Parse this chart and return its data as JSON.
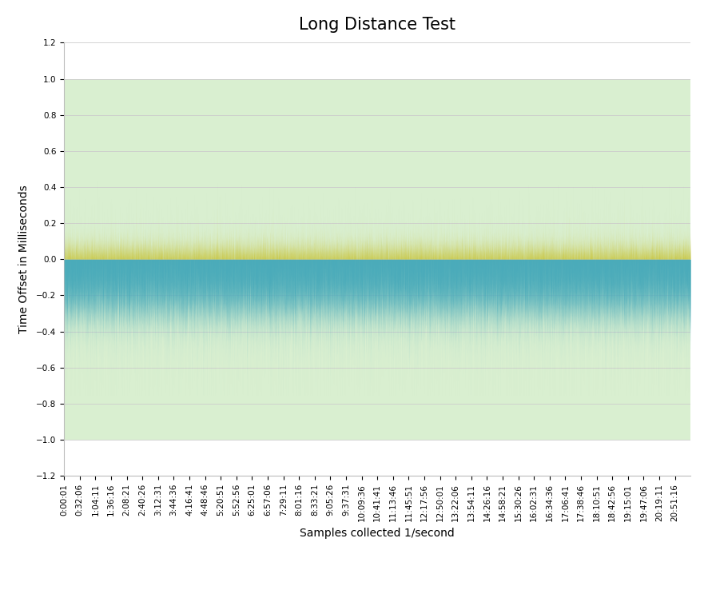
{
  "title": "Long Distance Test",
  "xlabel": "Samples collected 1/second",
  "ylabel": "Time Offset in Milliseconds",
  "ylim": [
    -1.2,
    1.2
  ],
  "yticks": [
    -1.2,
    -1.0,
    -0.8,
    -0.6,
    -0.4,
    -0.2,
    0.0,
    0.2,
    0.4,
    0.6,
    0.8,
    1.0,
    1.2
  ],
  "shaded_region": [
    -1,
    1
  ],
  "shaded_color": "#d9efd0",
  "color_6hop": "#4aabba",
  "color_1hop": "#c8c43a",
  "n_samples": 75000,
  "tick_interval": 1875,
  "x_tick_labels": [
    "0:00:01",
    "0:32:06",
    "1:04:11",
    "1:36:16",
    "2:08:21",
    "2:40:26",
    "3:12:31",
    "3:44:36",
    "4:16:41",
    "4:48:46",
    "5:20:51",
    "5:52:56",
    "6:25:01",
    "6:57:06",
    "7:29:11",
    "8:01:16",
    "8:33:21",
    "9:05:26",
    "9:37:31",
    "10:09:36",
    "10:41:41",
    "11:13:46",
    "11:45:51",
    "12:17:56",
    "12:50:01",
    "13:22:06",
    "13:54:11",
    "14:26:16",
    "14:58:21",
    "15:30:26",
    "16:02:31",
    "16:34:36",
    "17:06:41",
    "17:38:46",
    "18:10:51",
    "18:42:56",
    "19:15:01",
    "19:47:06",
    "20:19:11",
    "20:51:16"
  ],
  "background_color": "#ffffff",
  "grid_color": "#cccccc",
  "title_fontsize": 15,
  "label_fontsize": 10,
  "tick_fontsize": 7.5,
  "legend_fontsize": 10
}
